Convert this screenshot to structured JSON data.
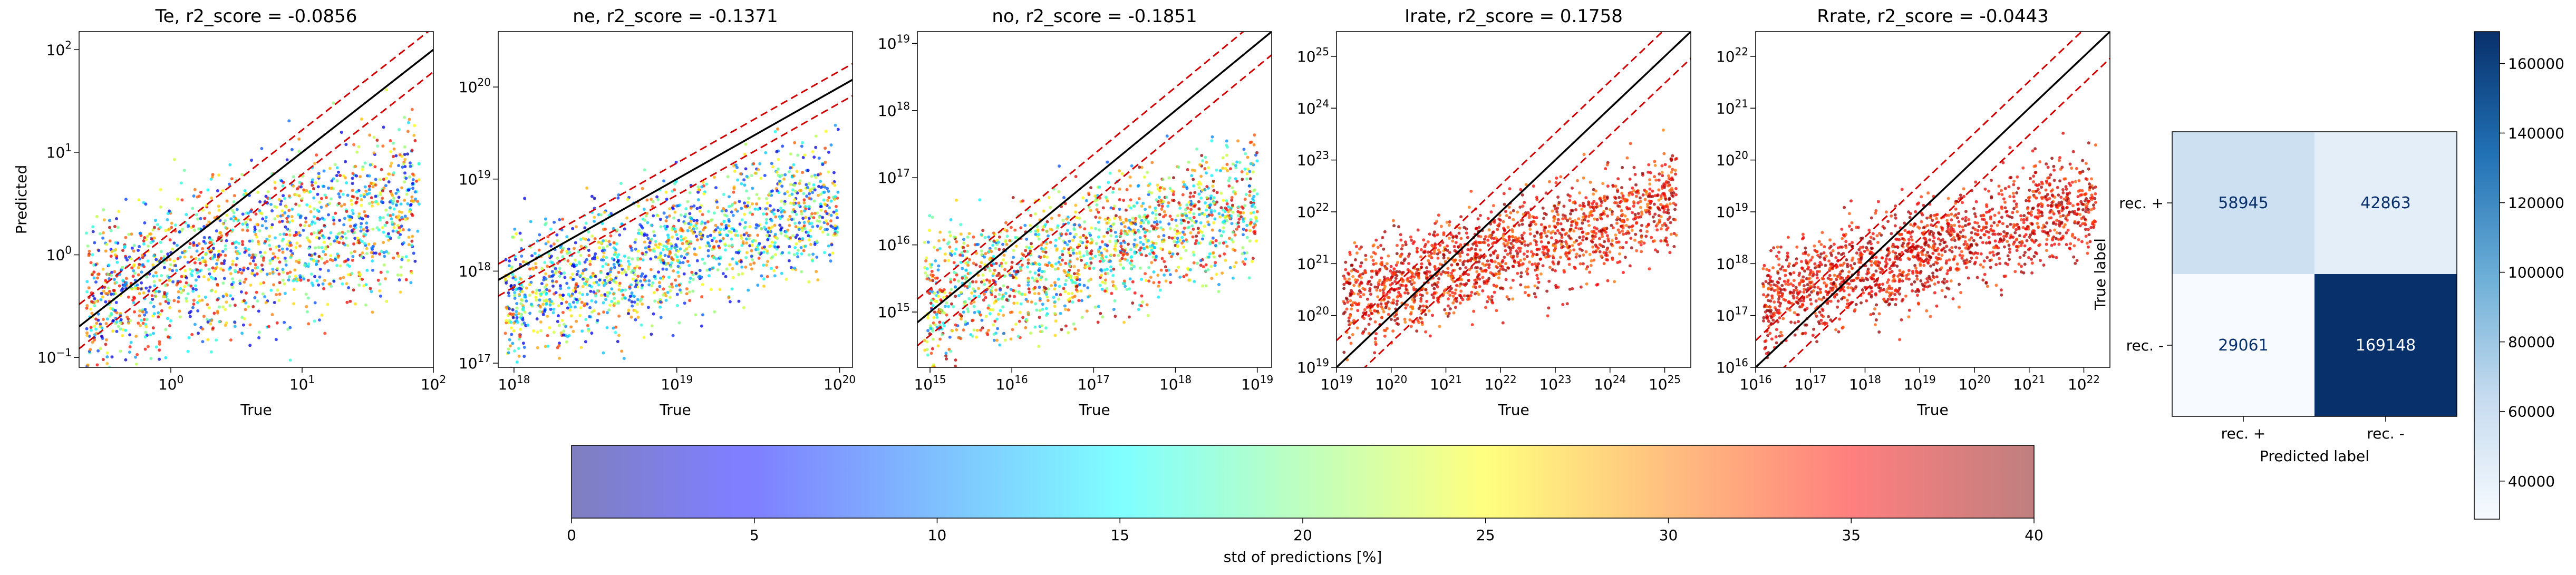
{
  "chart_data": [
    {
      "type": "scatter",
      "title": "Te, r2_score = -0.0856",
      "xlabel": "True",
      "ylabel": "Predicted",
      "xscale": "log",
      "yscale": "log",
      "xlim": [
        0.2,
        100
      ],
      "ylim": [
        0.08,
        150
      ],
      "xticks": [
        {
          "v": 1,
          "base": "10",
          "exp": "0"
        },
        {
          "v": 10,
          "base": "10",
          "exp": "1"
        },
        {
          "v": 100,
          "base": "10",
          "exp": "2"
        }
      ],
      "yticks": [
        {
          "v": 0.1,
          "base": "10",
          "exp": "−1"
        },
        {
          "v": 1,
          "base": "10",
          "exp": "0"
        },
        {
          "v": 10,
          "base": "10",
          "exp": "1"
        },
        {
          "v": 100,
          "base": "10",
          "exp": "2"
        }
      ],
      "identity_line": true,
      "tolerance_lines": true,
      "color_scale": "std of predictions [%]"
    },
    {
      "type": "scatter",
      "title": "ne, r2_score = -0.1371",
      "xlabel": "True",
      "ylabel": "",
      "xscale": "log",
      "yscale": "log",
      "xlim": [
        8e+17,
        1.2e+20
      ],
      "ylim": [
        9e+16,
        4e+20
      ],
      "xticks": [
        {
          "v": 1e+18,
          "base": "10",
          "exp": "18"
        },
        {
          "v": 1e+19,
          "base": "10",
          "exp": "19"
        },
        {
          "v": 1e+20,
          "base": "10",
          "exp": "20"
        }
      ],
      "yticks": [
        {
          "v": 1e+17,
          "base": "10",
          "exp": "17"
        },
        {
          "v": 1e+18,
          "base": "10",
          "exp": "18"
        },
        {
          "v": 1e+19,
          "base": "10",
          "exp": "19"
        },
        {
          "v": 1e+20,
          "base": "10",
          "exp": "20"
        }
      ],
      "identity_line": true,
      "tolerance_lines": true,
      "color_scale": "std of predictions [%]"
    },
    {
      "type": "scatter",
      "title": "no, r2_score = -0.1851",
      "xlabel": "True",
      "ylabel": "",
      "xscale": "log",
      "yscale": "log",
      "xlim": [
        700000000000000.0,
        1.5e+19
      ],
      "ylim": [
        150000000000000.0,
        1.5e+19
      ],
      "xticks": [
        {
          "v": 1000000000000000.0,
          "base": "10",
          "exp": "15"
        },
        {
          "v": 1e+16,
          "base": "10",
          "exp": "16"
        },
        {
          "v": 1e+17,
          "base": "10",
          "exp": "17"
        },
        {
          "v": 1e+18,
          "base": "10",
          "exp": "18"
        },
        {
          "v": 1e+19,
          "base": "10",
          "exp": "19"
        }
      ],
      "yticks": [
        {
          "v": 1000000000000000.0,
          "base": "10",
          "exp": "15"
        },
        {
          "v": 1e+16,
          "base": "10",
          "exp": "16"
        },
        {
          "v": 1e+17,
          "base": "10",
          "exp": "17"
        },
        {
          "v": 1e+18,
          "base": "10",
          "exp": "18"
        },
        {
          "v": 1e+19,
          "base": "10",
          "exp": "19"
        }
      ],
      "identity_line": true,
      "tolerance_lines": true,
      "color_scale": "std of predictions [%]"
    },
    {
      "type": "scatter",
      "title": "Irate, r2_score = 0.1758",
      "xlabel": "True",
      "ylabel": "",
      "xscale": "log",
      "yscale": "log",
      "xlim": [
        1e+19,
        3e+25
      ],
      "ylim": [
        1e+19,
        3e+25
      ],
      "xticks": [
        {
          "v": 1e+19,
          "base": "10",
          "exp": "19"
        },
        {
          "v": 1e+20,
          "base": "10",
          "exp": "20"
        },
        {
          "v": 1e+21,
          "base": "10",
          "exp": "21"
        },
        {
          "v": 1e+22,
          "base": "10",
          "exp": "22"
        },
        {
          "v": 1e+23,
          "base": "10",
          "exp": "23"
        },
        {
          "v": 1e+24,
          "base": "10",
          "exp": "24"
        },
        {
          "v": 1e+25,
          "base": "10",
          "exp": "25"
        }
      ],
      "yticks": [
        {
          "v": 1e+19,
          "base": "10",
          "exp": "19"
        },
        {
          "v": 1e+20,
          "base": "10",
          "exp": "20"
        },
        {
          "v": 1e+21,
          "base": "10",
          "exp": "21"
        },
        {
          "v": 1e+22,
          "base": "10",
          "exp": "22"
        },
        {
          "v": 1e+23,
          "base": "10",
          "exp": "23"
        },
        {
          "v": 1e+24,
          "base": "10",
          "exp": "24"
        },
        {
          "v": 1e+25,
          "base": "10",
          "exp": "25"
        }
      ],
      "identity_line": true,
      "tolerance_lines": true,
      "color_scale": "std of predictions [%]"
    },
    {
      "type": "scatter",
      "title": "Rrate, r2_score = -0.0443",
      "xlabel": "True",
      "ylabel": "",
      "xscale": "log",
      "yscale": "log",
      "xlim": [
        1e+16,
        3e+22
      ],
      "ylim": [
        1e+16,
        3e+22
      ],
      "xticks": [
        {
          "v": 1e+16,
          "base": "10",
          "exp": "16"
        },
        {
          "v": 1e+17,
          "base": "10",
          "exp": "17"
        },
        {
          "v": 1e+18,
          "base": "10",
          "exp": "18"
        },
        {
          "v": 1e+19,
          "base": "10",
          "exp": "19"
        },
        {
          "v": 1e+20,
          "base": "10",
          "exp": "20"
        },
        {
          "v": 1e+21,
          "base": "10",
          "exp": "21"
        },
        {
          "v": 1e+22,
          "base": "10",
          "exp": "22"
        }
      ],
      "yticks": [
        {
          "v": 1e+16,
          "base": "10",
          "exp": "16"
        },
        {
          "v": 1e+17,
          "base": "10",
          "exp": "17"
        },
        {
          "v": 1e+18,
          "base": "10",
          "exp": "18"
        },
        {
          "v": 1e+19,
          "base": "10",
          "exp": "19"
        },
        {
          "v": 1e+20,
          "base": "10",
          "exp": "20"
        },
        {
          "v": 1e+21,
          "base": "10",
          "exp": "21"
        },
        {
          "v": 1e+22,
          "base": "10",
          "exp": "22"
        }
      ],
      "identity_line": true,
      "tolerance_lines": true,
      "color_scale": "std of predictions [%]"
    },
    {
      "type": "heatmap",
      "title": "",
      "xlabel": "Predicted label",
      "ylabel": "True label",
      "x_labels": [
        "rec. +",
        "rec. -"
      ],
      "y_labels": [
        "rec. +",
        "rec. -"
      ],
      "values": [
        [
          58945,
          42863
        ],
        [
          29061,
          169148
        ]
      ],
      "colormap": "Blues",
      "colorbar": {
        "min": 29061,
        "max": 169148,
        "ticks": [
          40000,
          60000,
          80000,
          100000,
          120000,
          140000,
          160000
        ]
      }
    }
  ],
  "colorbar": {
    "label": "std of predictions [%]",
    "min": 0,
    "max": 40,
    "ticks": [
      0,
      5,
      10,
      15,
      20,
      25,
      30,
      35,
      40
    ],
    "colormap": "jet",
    "alpha": 0.5
  },
  "colors": {
    "identity_line": "#000000",
    "tolerance_line": "#d00000",
    "confusion_text_light": "#ffffff",
    "confusion_text_dark": "#08306b"
  }
}
